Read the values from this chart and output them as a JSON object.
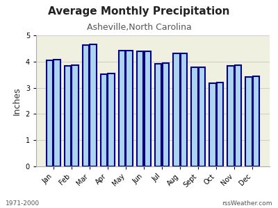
{
  "title": "Average Monthly Precipitation",
  "subtitle": "Asheville,North Carolina",
  "ylabel": "Inches",
  "footer_left": "1971-2000",
  "footer_right": "rssWeather.com",
  "months": [
    "Jan",
    "Feb",
    "Mar",
    "Apr",
    "May",
    "Jun",
    "Jul",
    "Aug",
    "Sept",
    "Oct",
    "Nov",
    "Dec"
  ],
  "values1": [
    4.06,
    3.83,
    4.63,
    3.52,
    4.41,
    4.38,
    3.92,
    4.3,
    3.77,
    3.17,
    3.84,
    3.41
  ],
  "values2": [
    4.08,
    3.85,
    4.65,
    3.54,
    4.43,
    4.4,
    3.94,
    4.32,
    3.79,
    3.19,
    3.86,
    3.43
  ],
  "ylim": [
    0.0,
    5.0
  ],
  "yticks": [
    0.0,
    1.0,
    2.0,
    3.0,
    4.0,
    5.0
  ],
  "bar_face_color": "#add4ef",
  "bar_edge_color": "#000080",
  "background_color": "#ffffff",
  "plot_bg_color": "#f0f0e0",
  "grid_color": "#cccccc",
  "title_fontsize": 11,
  "subtitle_fontsize": 9,
  "tick_fontsize": 7,
  "ylabel_fontsize": 9,
  "footer_fontsize": 6.5,
  "bar_width": 0.35,
  "bar_gap": 0.04,
  "edge_linewidth": 1.5
}
